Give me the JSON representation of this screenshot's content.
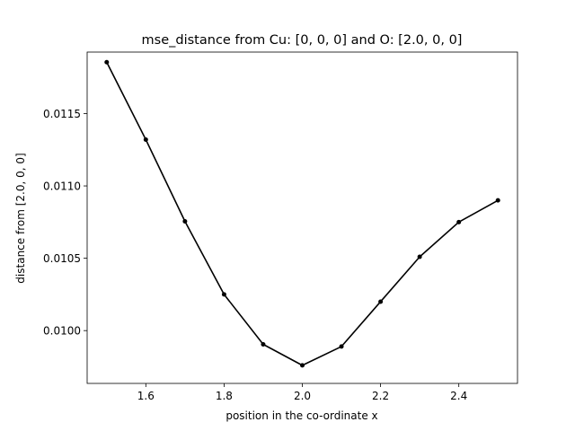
{
  "chart_data": {
    "type": "line",
    "title": "mse_distance from Cu: [0, 0, 0] and O: [2.0, 0, 0]",
    "xlabel": "position in the co-ordinate x",
    "ylabel": "distance from [2.0, 0, 0]",
    "xlim": [
      1.45,
      2.55
    ],
    "ylim": [
      0.009635,
      0.011925
    ],
    "x_ticks": [
      1.6,
      1.8,
      2.0,
      2.2,
      2.4
    ],
    "x_tick_labels": [
      "1.6",
      "1.8",
      "2.0",
      "2.2",
      "2.4"
    ],
    "y_ticks": [
      0.01,
      0.0105,
      0.011,
      0.0115
    ],
    "y_tick_labels": [
      "0.0100",
      "0.0105",
      "0.0110",
      "0.0115"
    ],
    "grid": false,
    "series": [
      {
        "color": "#000000",
        "marker": "circle",
        "x": [
          1.5,
          1.6,
          1.7,
          1.8,
          1.9,
          2.0,
          2.1,
          2.2,
          2.3,
          2.4,
          2.5
        ],
        "y": [
          0.011855,
          0.01132,
          0.010755,
          0.01025,
          0.009905,
          0.00976,
          0.00989,
          0.0102,
          0.01051,
          0.01075,
          0.0109
        ]
      }
    ]
  }
}
